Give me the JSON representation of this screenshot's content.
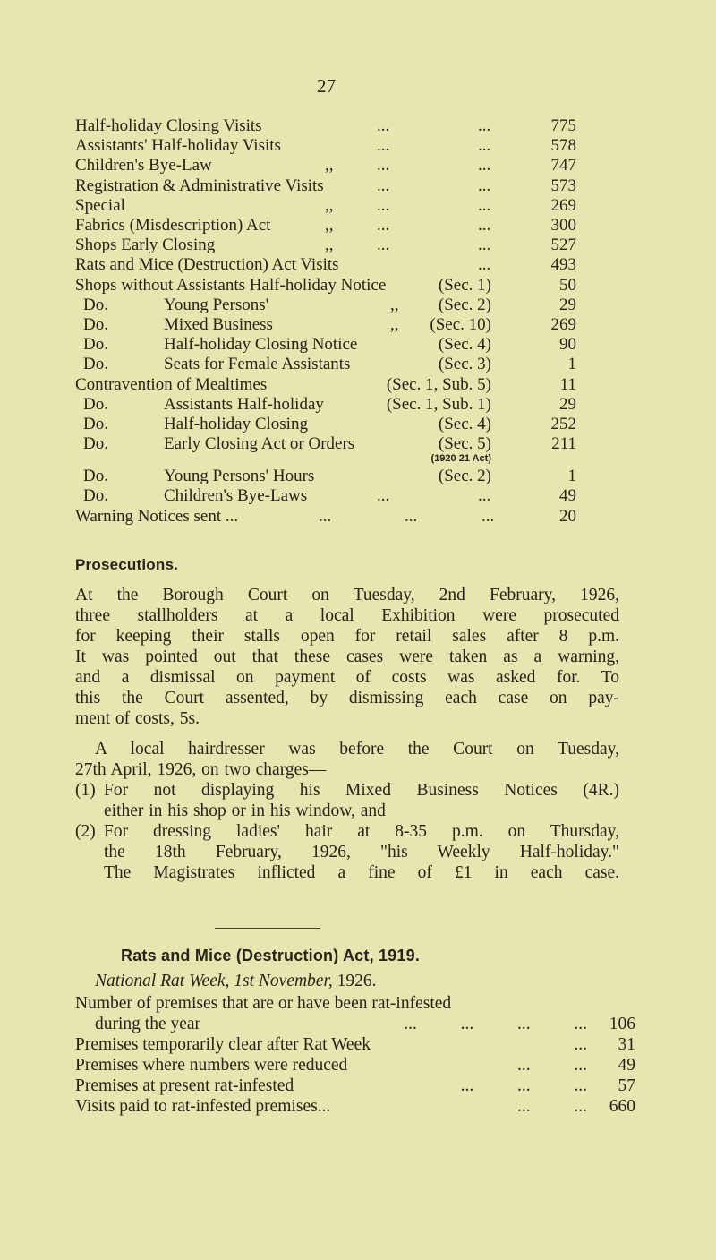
{
  "page_number": "27",
  "visits_table": [
    {
      "label": "Half-holiday Closing Visits",
      "ditto": "",
      "dots": [
        "...",
        "..."
      ],
      "value": "775"
    },
    {
      "label": "Assistants' Half-holiday Visits",
      "ditto": "",
      "dots": [
        "...",
        "..."
      ],
      "value": "578"
    },
    {
      "label": "Children's Bye-Law",
      "ditto": ",,",
      "dots": [
        "...",
        "..."
      ],
      "value": "747"
    },
    {
      "label": "Registration & Administrative Visits",
      "ditto": "",
      "dots": [
        "...",
        "..."
      ],
      "value": "573"
    },
    {
      "label": "Special",
      "ditto": ",,",
      "dots": [
        "...",
        "..."
      ],
      "value": "269"
    },
    {
      "label": "Fabrics (Misdescription) Act",
      "ditto": ",,",
      "dots": [
        "...",
        "..."
      ],
      "value": "300"
    },
    {
      "label": "Shops Early Closing",
      "ditto": ",,",
      "dots": [
        "...",
        "..."
      ],
      "value": "527"
    },
    {
      "label": "Rats and Mice (Destruction) Act Visits",
      "ditto": "",
      "dots": [
        "",
        "..."
      ],
      "value": "493"
    }
  ],
  "notices_table": [
    {
      "label": "Shops without Assistants Half-holiday Notice",
      "section": "(Sec. 1)",
      "value": "50"
    },
    {
      "do": "Do.",
      "desc": "Young Persons'",
      "ditto": ",,",
      "section": "(Sec. 2)",
      "value": "29"
    },
    {
      "do": "Do.",
      "desc": "Mixed Business",
      "ditto": ",,",
      "section": "(Sec. 10)",
      "value": "269"
    },
    {
      "do": "Do.",
      "desc": "Half-holiday Closing Notice",
      "section": "(Sec. 4)",
      "value": "90"
    },
    {
      "do": "Do.",
      "desc": "Seats for Female Assistants",
      "section": "(Sec. 3)",
      "value": "1"
    }
  ],
  "contravention_table": [
    {
      "label": "Contravention of Mealtimes",
      "section": "(Sec. 1, Sub. 5)",
      "value": "11"
    },
    {
      "do": "Do.",
      "desc": "Assistants Half-holiday",
      "section": "(Sec. 1, Sub. 1)",
      "value": "29"
    },
    {
      "do": "Do.",
      "desc": "Half-holiday Closing",
      "section": "(Sec. 4)",
      "value": "252"
    },
    {
      "do": "Do.",
      "desc": "Early Closing Act or Orders",
      "section": "(Sec. 5)",
      "note": "(1920 21 Act)",
      "value": "211"
    },
    {
      "do": "Do.",
      "desc": "Young Persons' Hours",
      "section": "(Sec. 2)",
      "value": "1"
    },
    {
      "do": "Do.",
      "desc": "Children's Bye-Laws",
      "dots": [
        "...",
        "..."
      ],
      "value": "49"
    }
  ],
  "warning": {
    "label": "Warning Notices sent ...",
    "dots": [
      "...",
      "...",
      "..."
    ],
    "value": "20"
  },
  "prosecutions": {
    "heading": "Prosecutions.",
    "para1": [
      "At the Borough Court on Tuesday, 2nd February, 1926,",
      "three stallholders at a local Exhibition were prosecuted",
      "for keeping their stalls open for retail sales after 8 p.m.",
      "It was pointed out that these cases were taken as a warning,",
      "and a dismissal on payment of costs was asked for. To",
      "this the Court assented, by dismissing each case on pay-",
      "ment of costs, 5s."
    ],
    "para2": [
      "A local hairdresser was before the Court on Tuesday,",
      "27th April, 1926, on two charges—"
    ],
    "charges": [
      {
        "num": "(1)",
        "lines": [
          "For not displaying his Mixed Business Notices (4R.)",
          "either in his shop or in his window, and"
        ]
      },
      {
        "num": "(2)",
        "lines": [
          "For dressing ladies' hair at 8-35 p.m. on Thursday,",
          "the 18th February, 1926, \"his Weekly Half-holiday.\""
        ]
      }
    ],
    "outcome": "The Magistrates inflicted a fine of £1 in each case."
  },
  "rats": {
    "heading": "Rats and Mice (Destruction) Act, 1919.",
    "subtitle_italic": "National Rat Week, 1st November,",
    "subtitle_year": "1926.",
    "rows": [
      {
        "label": "Number of premises that are or have been rat-infested",
        "value": ""
      },
      {
        "label": "during the year",
        "dots": "...          ...          ...          ...",
        "value": "106"
      },
      {
        "label": "Premises temporarily clear after Rat Week",
        "dots": "...",
        "value": "31"
      },
      {
        "label": "Premises where numbers were reduced",
        "dots": "...          ...",
        "value": "49"
      },
      {
        "label": "Premises at present rat-infested",
        "dots": "...          ...          ...",
        "value": "57"
      },
      {
        "label": "Visits paid to rat-infested premises...",
        "dots": "...          ...",
        "value": "660"
      }
    ]
  }
}
